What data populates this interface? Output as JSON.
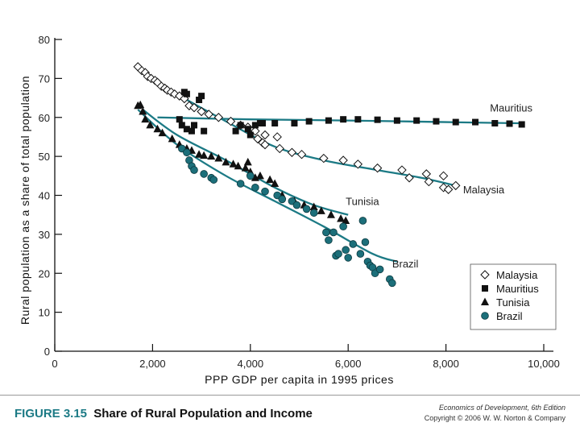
{
  "chart_data": {
    "type": "scatter",
    "title": "",
    "xlabel": "PPP GDP per capita in 1995 prices",
    "ylabel": "Rural population as a share of total population",
    "xlim": [
      0,
      10000
    ],
    "ylim": [
      0,
      80
    ],
    "xticks": [
      0,
      2000,
      4000,
      6000,
      8000,
      10000
    ],
    "xtick_labels": [
      "0",
      "2,000",
      "4,000",
      "6,000",
      "8,000",
      "10,000"
    ],
    "yticks": [
      0,
      10,
      20,
      30,
      40,
      50,
      60,
      70,
      80
    ],
    "ytick_labels": [
      "0",
      "10",
      "20",
      "30",
      "40",
      "50",
      "60",
      "70",
      "80"
    ],
    "grid": false,
    "legend_position": "bottom-right",
    "series": [
      {
        "name": "Malaysia",
        "marker": "diamond",
        "label": "Malaysia",
        "points": [
          [
            1700,
            73
          ],
          [
            1780,
            72
          ],
          [
            1850,
            71.5
          ],
          [
            1900,
            70.5
          ],
          [
            1970,
            70
          ],
          [
            2050,
            69.5
          ],
          [
            2100,
            69
          ],
          [
            2180,
            68
          ],
          [
            2250,
            67.5
          ],
          [
            2300,
            67
          ],
          [
            2380,
            66.5
          ],
          [
            2450,
            66
          ],
          [
            2550,
            65.5
          ],
          [
            2650,
            64.8
          ],
          [
            2750,
            63
          ],
          [
            2850,
            62.5
          ],
          [
            3000,
            61.5
          ],
          [
            3150,
            60.8
          ],
          [
            3350,
            60
          ],
          [
            3600,
            59
          ],
          [
            3800,
            58
          ],
          [
            3950,
            57.5
          ],
          [
            4100,
            56.5
          ],
          [
            4150,
            54.5
          ],
          [
            4250,
            53.5
          ],
          [
            4300,
            53
          ],
          [
            4300,
            55.5
          ],
          [
            4550,
            55
          ],
          [
            4600,
            52
          ],
          [
            4850,
            51
          ],
          [
            5050,
            50.5
          ],
          [
            5500,
            49.5
          ],
          [
            5900,
            49
          ],
          [
            6200,
            48
          ],
          [
            6600,
            47
          ],
          [
            7100,
            46.5
          ],
          [
            7250,
            44.5
          ],
          [
            7600,
            45.5
          ],
          [
            7650,
            43.5
          ],
          [
            7950,
            45
          ],
          [
            7950,
            42
          ],
          [
            8050,
            41.5
          ],
          [
            8200,
            42.5
          ]
        ],
        "trend": [
          [
            1700,
            72.5
          ],
          [
            2500,
            66
          ],
          [
            3500,
            59
          ],
          [
            4500,
            52.5
          ],
          [
            5500,
            49
          ],
          [
            6500,
            46.7
          ],
          [
            7500,
            44.5
          ],
          [
            8200,
            42.5
          ]
        ]
      },
      {
        "name": "Mauritius",
        "marker": "square",
        "label": "Mauritius",
        "points": [
          [
            2550,
            59.5
          ],
          [
            2600,
            58
          ],
          [
            2650,
            66.5
          ],
          [
            2700,
            66
          ],
          [
            2700,
            57
          ],
          [
            2800,
            56.5
          ],
          [
            2850,
            58
          ],
          [
            2950,
            64.5
          ],
          [
            3000,
            65.5
          ],
          [
            3050,
            56.5
          ],
          [
            3700,
            56.5
          ],
          [
            3800,
            58
          ],
          [
            3950,
            57
          ],
          [
            4000,
            55.5
          ],
          [
            4100,
            58
          ],
          [
            4200,
            58.5
          ],
          [
            4250,
            58.5
          ],
          [
            4500,
            58.5
          ],
          [
            4900,
            58.5
          ],
          [
            5200,
            59
          ],
          [
            5600,
            59.2
          ],
          [
            5900,
            59.5
          ],
          [
            6200,
            59.5
          ],
          [
            6600,
            59.4
          ],
          [
            7000,
            59.2
          ],
          [
            7400,
            59.2
          ],
          [
            7800,
            59
          ],
          [
            8200,
            58.8
          ],
          [
            8600,
            58.8
          ],
          [
            9000,
            58.5
          ],
          [
            9300,
            58.4
          ],
          [
            9550,
            58.2
          ]
        ],
        "trend": [
          [
            2100,
            60
          ],
          [
            4000,
            59.5
          ],
          [
            6000,
            59.2
          ],
          [
            8000,
            58.8
          ],
          [
            9500,
            58.5
          ]
        ]
      },
      {
        "name": "Tunisia",
        "marker": "triangle",
        "label": "Tunisia",
        "points": [
          [
            1700,
            63
          ],
          [
            1750,
            63.2
          ],
          [
            1800,
            61.5
          ],
          [
            1850,
            59.5
          ],
          [
            1950,
            58
          ],
          [
            2100,
            57
          ],
          [
            2200,
            56
          ],
          [
            2400,
            54.5
          ],
          [
            2550,
            53
          ],
          [
            2700,
            52
          ],
          [
            2800,
            51.5
          ],
          [
            2950,
            50.5
          ],
          [
            3050,
            50.2
          ],
          [
            3200,
            50
          ],
          [
            3350,
            49.5
          ],
          [
            3500,
            48.5
          ],
          [
            3650,
            48
          ],
          [
            3750,
            47.5
          ],
          [
            3900,
            47
          ],
          [
            3950,
            48.5
          ],
          [
            4000,
            46
          ],
          [
            4100,
            44.5
          ],
          [
            4200,
            45
          ],
          [
            4400,
            44
          ],
          [
            4500,
            43
          ],
          [
            4650,
            40
          ],
          [
            4900,
            38.5
          ],
          [
            5100,
            37.5
          ],
          [
            5300,
            37
          ],
          [
            5450,
            36
          ],
          [
            5650,
            35
          ],
          [
            5850,
            34
          ],
          [
            5950,
            33.5
          ]
        ],
        "trend": [
          [
            1800,
            62
          ],
          [
            2500,
            55.5
          ],
          [
            3500,
            49
          ],
          [
            4500,
            42
          ],
          [
            5300,
            37.5
          ],
          [
            6000,
            35
          ]
        ]
      },
      {
        "name": "Brazil",
        "marker": "circle",
        "label": "Brazil",
        "points": [
          [
            2600,
            52
          ],
          [
            2700,
            51
          ],
          [
            2750,
            49
          ],
          [
            2800,
            47.5
          ],
          [
            2850,
            46.5
          ],
          [
            3050,
            45.5
          ],
          [
            3200,
            44.5
          ],
          [
            3250,
            44
          ],
          [
            3800,
            43
          ],
          [
            4000,
            45
          ],
          [
            4100,
            42
          ],
          [
            4300,
            41
          ],
          [
            4550,
            40
          ],
          [
            4650,
            39
          ],
          [
            4850,
            38.5
          ],
          [
            4950,
            37.5
          ],
          [
            5150,
            36.5
          ],
          [
            5300,
            35.5
          ],
          [
            5550,
            30.5
          ],
          [
            5600,
            28.5
          ],
          [
            5700,
            30.5
          ],
          [
            5750,
            24.5
          ],
          [
            5800,
            25
          ],
          [
            5900,
            32
          ],
          [
            5950,
            26
          ],
          [
            6000,
            24
          ],
          [
            6100,
            27.5
          ],
          [
            6250,
            25
          ],
          [
            6300,
            33.5
          ],
          [
            6350,
            28
          ],
          [
            6400,
            23
          ],
          [
            6450,
            22
          ],
          [
            6500,
            21.5
          ],
          [
            6550,
            20
          ],
          [
            6650,
            21
          ],
          [
            6850,
            18.5
          ],
          [
            6900,
            17.5
          ]
        ],
        "trend": [
          [
            1700,
            62
          ],
          [
            2500,
            53
          ],
          [
            3500,
            45
          ],
          [
            4500,
            38.5
          ],
          [
            5500,
            32
          ],
          [
            6500,
            25
          ],
          [
            7000,
            23
          ]
        ]
      }
    ],
    "legend": [
      "Malaysia",
      "Mauritius",
      "Tunisia",
      "Brazil"
    ]
  },
  "caption": {
    "figure_number": "FIGURE 3.15",
    "figure_title": "Share of Rural Population and Income",
    "book_title": "Economics of Development, 6th Edition",
    "copyright": "Copyright © 2006 W. W. Norton & Company"
  },
  "colors": {
    "trend": "#1c7a85",
    "marker_dark": "#111111",
    "brazil_fill": "#1c6f7a",
    "caption_accent": "#1c7a85"
  }
}
